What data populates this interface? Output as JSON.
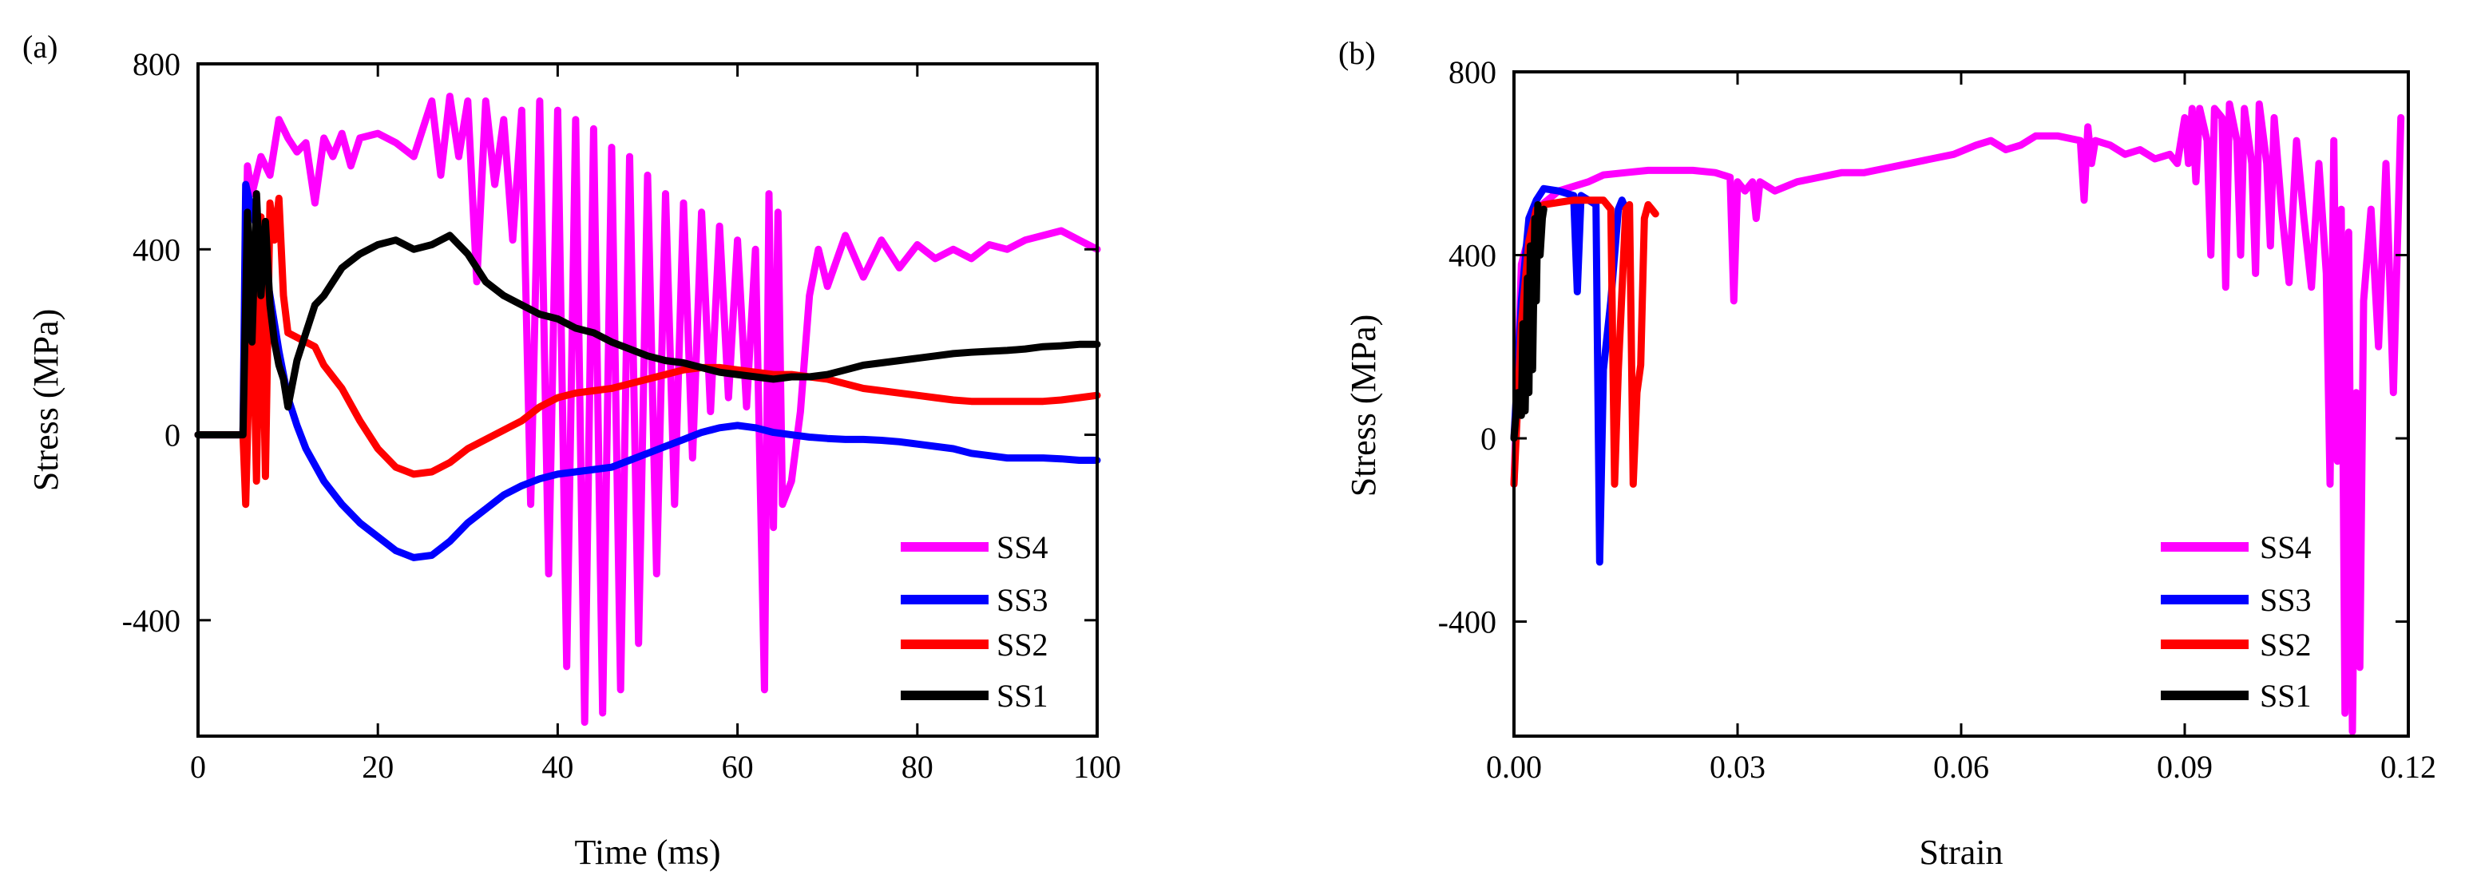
{
  "figure": {
    "panel_a_label": "(a)",
    "panel_b_label": "(b)"
  },
  "chart_data": [
    {
      "type": "line",
      "panel": "(a)",
      "title": "",
      "xlabel": "Time (ms)",
      "ylabel": "Stress (MPa)",
      "xlim": [
        0,
        100
      ],
      "ylim": [
        -650,
        800
      ],
      "xticks": [
        0,
        20,
        40,
        60,
        80,
        100
      ],
      "xtick_labels": [
        "0",
        "20",
        "40",
        "60",
        "80",
        "100"
      ],
      "yticks": [
        -400,
        0,
        400,
        800
      ],
      "ytick_labels": [
        "-400",
        "0",
        "400",
        "800"
      ],
      "grid": false,
      "legend_position": "bottom-right",
      "legend": [
        "SS4",
        "SS3",
        "SS2",
        "SS1"
      ],
      "series": [
        {
          "name": "SS4",
          "color": "#ff00ff",
          "x": [
            5,
            5.5,
            6,
            7,
            8,
            9,
            10,
            11,
            12,
            13,
            14,
            15,
            16,
            17,
            18,
            20,
            22,
            24,
            26,
            27,
            28,
            29,
            30,
            31,
            32,
            33,
            34,
            35,
            36,
            37,
            38,
            39,
            40,
            41,
            42,
            43,
            44,
            45,
            46,
            47,
            48,
            49,
            50,
            51,
            52,
            53,
            54,
            55,
            56,
            57,
            58,
            59,
            60,
            61,
            62,
            63,
            63.5,
            64,
            64.5,
            65,
            66,
            67,
            68,
            69,
            70,
            72,
            74,
            76,
            78,
            80,
            82,
            84,
            86,
            88,
            90,
            92,
            94,
            96,
            98,
            100
          ],
          "y": [
            0,
            580,
            520,
            600,
            560,
            680,
            640,
            610,
            630,
            500,
            640,
            600,
            650,
            580,
            640,
            650,
            630,
            600,
            720,
            560,
            730,
            600,
            720,
            330,
            720,
            540,
            680,
            420,
            700,
            -150,
            720,
            -300,
            700,
            -500,
            680,
            -620,
            660,
            -600,
            620,
            -550,
            600,
            -450,
            560,
            -300,
            520,
            -150,
            500,
            -50,
            480,
            50,
            450,
            80,
            420,
            60,
            400,
            -550,
            520,
            -200,
            480,
            -150,
            -100,
            50,
            300,
            400,
            320,
            430,
            340,
            420,
            360,
            410,
            380,
            400,
            380,
            410,
            400,
            420,
            430,
            440,
            420,
            400
          ]
        },
        {
          "name": "SS3",
          "color": "#0000ff",
          "x": [
            0,
            5,
            5.3,
            6,
            7,
            8,
            9,
            10,
            11,
            12,
            14,
            16,
            18,
            20,
            22,
            24,
            26,
            28,
            30,
            32,
            34,
            36,
            38,
            40,
            42,
            44,
            46,
            48,
            50,
            52,
            54,
            56,
            58,
            60,
            62,
            64,
            66,
            68,
            70,
            72,
            74,
            76,
            78,
            80,
            82,
            84,
            86,
            88,
            90,
            92,
            94,
            96,
            98,
            100
          ],
          "y": [
            0,
            0,
            540,
            480,
            420,
            300,
            180,
            80,
            20,
            -30,
            -100,
            -150,
            -190,
            -220,
            -250,
            -265,
            -260,
            -230,
            -190,
            -160,
            -130,
            -110,
            -95,
            -85,
            -80,
            -75,
            -70,
            -55,
            -40,
            -25,
            -10,
            5,
            15,
            20,
            15,
            5,
            0,
            -5,
            -8,
            -10,
            -10,
            -12,
            -15,
            -20,
            -25,
            -30,
            -40,
            -45,
            -50,
            -50,
            -50,
            -52,
            -55,
            -55
          ]
        },
        {
          "name": "SS2",
          "color": "#ff0000",
          "x": [
            0,
            5,
            5.3,
            6,
            6.5,
            7,
            7.5,
            8,
            8.5,
            9,
            9.5,
            10,
            11,
            12,
            13,
            14,
            16,
            18,
            20,
            22,
            24,
            26,
            28,
            30,
            32,
            34,
            36,
            38,
            40,
            42,
            44,
            46,
            48,
            50,
            52,
            54,
            56,
            58,
            60,
            62,
            64,
            66,
            68,
            70,
            72,
            74,
            76,
            78,
            80,
            82,
            84,
            86,
            88,
            90,
            92,
            94,
            96,
            98,
            100
          ],
          "y": [
            0,
            0,
            -150,
            380,
            -100,
            470,
            -90,
            500,
            420,
            510,
            300,
            220,
            210,
            200,
            190,
            150,
            100,
            30,
            -30,
            -70,
            -85,
            -80,
            -60,
            -30,
            -10,
            10,
            30,
            60,
            80,
            90,
            95,
            100,
            110,
            120,
            130,
            140,
            145,
            145,
            140,
            135,
            130,
            130,
            125,
            120,
            110,
            100,
            95,
            90,
            85,
            80,
            75,
            72,
            72,
            72,
            72,
            72,
            75,
            80,
            85
          ]
        },
        {
          "name": "SS1",
          "color": "#000000",
          "x": [
            0,
            5,
            5.5,
            6,
            6.5,
            7,
            7.5,
            8,
            8.5,
            9,
            9.5,
            10,
            11,
            12,
            13,
            14,
            16,
            18,
            20,
            22,
            24,
            26,
            28,
            30,
            32,
            34,
            36,
            38,
            40,
            42,
            44,
            46,
            48,
            50,
            52,
            54,
            56,
            58,
            60,
            62,
            64,
            66,
            68,
            70,
            72,
            74,
            76,
            78,
            80,
            82,
            84,
            86,
            88,
            90,
            92,
            94,
            96,
            98,
            100
          ],
          "y": [
            0,
            0,
            480,
            200,
            520,
            300,
            460,
            280,
            200,
            150,
            120,
            60,
            160,
            220,
            280,
            300,
            360,
            390,
            410,
            420,
            400,
            410,
            430,
            390,
            330,
            300,
            280,
            260,
            250,
            230,
            220,
            200,
            185,
            170,
            160,
            155,
            145,
            135,
            130,
            125,
            120,
            125,
            125,
            130,
            140,
            150,
            155,
            160,
            165,
            170,
            175,
            178,
            180,
            182,
            185,
            190,
            192,
            195,
            195
          ]
        }
      ]
    },
    {
      "type": "line",
      "panel": "(b)",
      "title": "",
      "xlabel": "Strain",
      "ylabel": "Stress (MPa)",
      "xlim": [
        0,
        0.12
      ],
      "ylim": [
        -650,
        800
      ],
      "xticks": [
        0,
        0.03,
        0.06,
        0.09,
        0.12
      ],
      "xtick_labels": [
        "0.00",
        "0.03",
        "0.06",
        "0.09",
        "0.12"
      ],
      "yticks": [
        -400,
        0,
        400,
        800
      ],
      "ytick_labels": [
        "-400",
        "0",
        "400",
        "800"
      ],
      "grid": false,
      "legend_position": "bottom-right",
      "legend": [
        "SS4",
        "SS3",
        "SS2",
        "SS1"
      ],
      "series": [
        {
          "name": "SS4",
          "color": "#ff00ff",
          "x": [
            0,
            0.001,
            0.003,
            0.006,
            0.01,
            0.012,
            0.015,
            0.018,
            0.021,
            0.024,
            0.027,
            0.029,
            0.0295,
            0.03,
            0.031,
            0.032,
            0.0325,
            0.033,
            0.035,
            0.038,
            0.041,
            0.044,
            0.047,
            0.05,
            0.053,
            0.056,
            0.059,
            0.062,
            0.064,
            0.066,
            0.068,
            0.07,
            0.073,
            0.076,
            0.0765,
            0.077,
            0.0775,
            0.078,
            0.08,
            0.082,
            0.084,
            0.086,
            0.088,
            0.089,
            0.09,
            0.0905,
            0.091,
            0.0915,
            0.092,
            0.093,
            0.0935,
            0.094,
            0.095,
            0.0955,
            0.096,
            0.097,
            0.0975,
            0.098,
            0.099,
            0.0995,
            0.1,
            0.101,
            0.1015,
            0.102,
            0.103,
            0.104,
            0.105,
            0.106,
            0.107,
            0.108,
            0.109,
            0.1095,
            0.11,
            0.1105,
            0.111,
            0.1115,
            0.112,
            0.1125,
            0.113,
            0.1135,
            0.114,
            0.115,
            0.116,
            0.117,
            0.118,
            0.119
          ],
          "y": [
            -100,
            380,
            500,
            540,
            560,
            575,
            580,
            585,
            585,
            585,
            580,
            570,
            300,
            560,
            540,
            560,
            480,
            560,
            540,
            560,
            570,
            580,
            580,
            590,
            600,
            610,
            620,
            640,
            650,
            630,
            640,
            660,
            660,
            650,
            520,
            680,
            600,
            650,
            640,
            620,
            630,
            610,
            620,
            600,
            700,
            600,
            720,
            560,
            720,
            650,
            400,
            720,
            700,
            330,
            730,
            650,
            400,
            720,
            600,
            360,
            730,
            600,
            420,
            700,
            500,
            340,
            650,
            480,
            330,
            600,
            360,
            -100,
            650,
            -50,
            500,
            -600,
            450,
            -640,
            100,
            -500,
            300,
            500,
            200,
            600,
            100,
            700
          ]
        },
        {
          "name": "SS3",
          "color": "#0000ff",
          "x": [
            0,
            0.001,
            0.002,
            0.003,
            0.004,
            0.006,
            0.008,
            0.0085,
            0.009,
            0.01,
            0.011,
            0.0115,
            0.012,
            0.013,
            0.014,
            0.0145,
            0.015
          ],
          "y": [
            0,
            300,
            480,
            520,
            545,
            540,
            530,
            320,
            530,
            520,
            510,
            -270,
            150,
            300,
            500,
            520,
            500
          ]
        },
        {
          "name": "SS2",
          "color": "#ff0000",
          "x": [
            0,
            0.001,
            0.002,
            0.003,
            0.004,
            0.006,
            0.008,
            0.01,
            0.012,
            0.013,
            0.0135,
            0.014,
            0.015,
            0.0155,
            0.016,
            0.0165,
            0.017,
            0.0175,
            0.018,
            0.0185,
            0.019
          ],
          "y": [
            -100,
            250,
            430,
            500,
            510,
            515,
            520,
            520,
            520,
            500,
            -100,
            150,
            500,
            510,
            -100,
            100,
            160,
            480,
            510,
            500,
            490
          ]
        },
        {
          "name": "SS1",
          "color": "#000000",
          "x": [
            0,
            0.0005,
            0.001,
            0.0012,
            0.0015,
            0.0018,
            0.002,
            0.0022,
            0.0025,
            0.0028,
            0.003,
            0.0032,
            0.0035,
            0.0038,
            0.004
          ],
          "y": [
            0,
            100,
            50,
            250,
            60,
            350,
            100,
            420,
            150,
            480,
            300,
            510,
            400,
            480,
            500
          ]
        }
      ]
    }
  ]
}
